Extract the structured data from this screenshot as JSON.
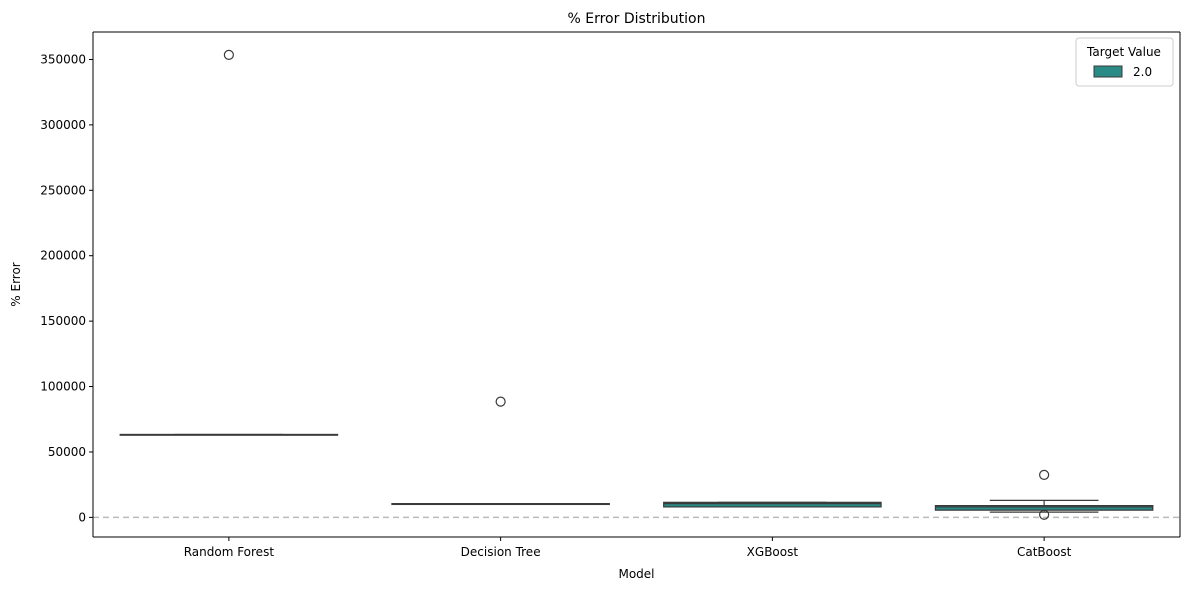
{
  "chart_data": {
    "type": "box",
    "title": "% Error Distribution",
    "xlabel": "Model",
    "ylabel": "% Error",
    "categories": [
      "Random Forest",
      "Decision Tree",
      "XGBoost",
      "CatBoost"
    ],
    "ylim": [
      -15000,
      371000
    ],
    "yticks": [
      0,
      50000,
      100000,
      150000,
      200000,
      250000,
      300000,
      350000
    ],
    "ytick_labels": [
      "0",
      "50000",
      "100000",
      "150000",
      "200000",
      "250000",
      "300000",
      "350000"
    ],
    "reference_line": {
      "y": 0,
      "style": "dashed",
      "color": "#bbbbbb"
    },
    "grid": false,
    "legend": {
      "title": "Target Value",
      "placement": "top-right"
    },
    "series": [
      {
        "name": "2.0",
        "color": "#2a8a86",
        "boxes": [
          {
            "category": "Random Forest",
            "q1": 63200,
            "median": 63300,
            "q3": 63400,
            "whisker_low": 63200,
            "whisker_high": 63400,
            "outliers": [
              353500
            ]
          },
          {
            "category": "Decision Tree",
            "q1": 10300,
            "median": 10400,
            "q3": 10500,
            "whisker_low": 10300,
            "whisker_high": 10500,
            "outliers": [
              88500
            ]
          },
          {
            "category": "XGBoost",
            "q1": 8000,
            "median": 10500,
            "q3": 11500,
            "whisker_low": 8000,
            "whisker_high": 11500,
            "outliers": []
          },
          {
            "category": "CatBoost",
            "q1": 5500,
            "median": 8000,
            "q3": 9000,
            "whisker_low": 4000,
            "whisker_high": 13000,
            "outliers": [
              32500,
              2000
            ]
          }
        ]
      }
    ]
  }
}
